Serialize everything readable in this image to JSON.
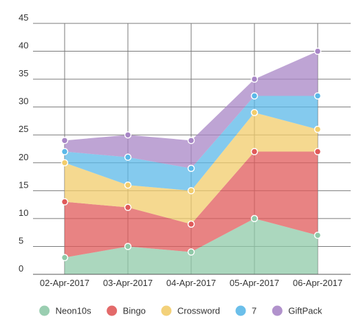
{
  "chart_data": {
    "type": "area",
    "stacked": true,
    "categories": [
      "02-Apr-2017",
      "03-Apr-2017",
      "04-Apr-2017",
      "05-Apr-2017",
      "06-Apr-2017"
    ],
    "series": [
      {
        "name": "Neon10s",
        "values": [
          3,
          5,
          4,
          10,
          7
        ],
        "color": "#8fc9a8"
      },
      {
        "name": "Bingo",
        "values": [
          10,
          7,
          5,
          12,
          15
        ],
        "color": "#e05a5a"
      },
      {
        "name": "Crossword",
        "values": [
          7,
          4,
          6,
          7,
          4
        ],
        "color": "#f2cc6b"
      },
      {
        "name": "7",
        "values": [
          2,
          5,
          4,
          3,
          6
        ],
        "color": "#5bb8e8"
      },
      {
        "name": "GiftPack",
        "values": [
          2,
          4,
          5,
          3,
          8
        ],
        "color": "#a886c6"
      }
    ],
    "yticks": [
      0,
      5,
      10,
      15,
      20,
      25,
      30,
      35,
      40,
      45
    ],
    "ylim": [
      0,
      45
    ],
    "title": "",
    "xlabel": "",
    "ylabel": "",
    "grid": true,
    "legend_position": "bottom"
  }
}
